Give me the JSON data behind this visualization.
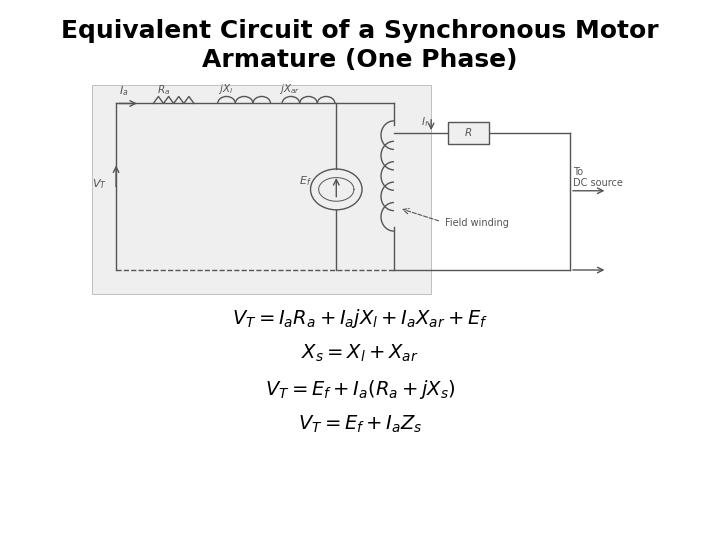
{
  "title_line1": "Equivalent Circuit of a Synchronous Motor",
  "title_line2": "Armature (One Phase)",
  "title_fontsize": 18,
  "title_fontweight": "bold",
  "bg_color": "#ffffff",
  "circuit_bg": "#eeeeee",
  "circuit_color": "#555555",
  "formula1": "$V_{T} = I_{a}R_{a} + I_{a}jX_{l} + I_{a}X_{ar} + E_{f}$",
  "formula2": "$X_{s} = X_{l} + X_{ar}$",
  "formula3": "$V_{T} = E_{f} + I_{a}(R_{a} + jX_{s})$",
  "formula4": "$V_{T} = E_{f} + I_{a}Z_{s}$",
  "formula_fontsize": 14,
  "label_Ia": "$I_a$",
  "label_Ra": "$R_a$",
  "label_jXl": "$jX_l$",
  "label_jXar": "$jX_{ar}$",
  "label_Vt": "$V_T$",
  "label_Ef": "$E_f$",
  "label_If": "$I_f$",
  "label_R": "R",
  "label_To_DC": "To\nDC source",
  "label_Field": "Field winding"
}
